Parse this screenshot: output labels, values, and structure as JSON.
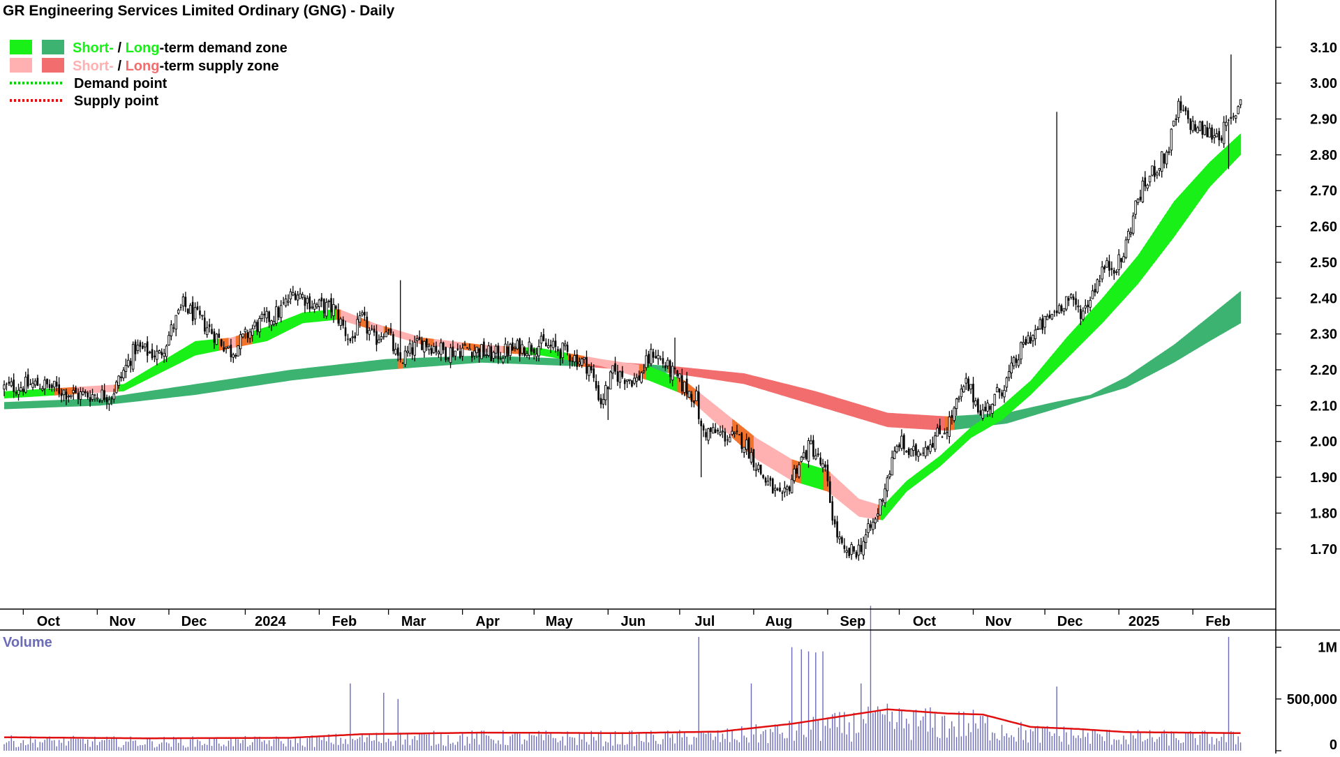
{
  "colors": {
    "short_demand": "#18f018",
    "long_demand": "#3cb371",
    "short_supply": "#ffb0b0",
    "long_supply": "#f26d6d",
    "transition": "#f2732c",
    "demand_point": "#10d010",
    "supply_point": "#e01010",
    "candle": "#000000",
    "volume_bar": "#6a6ab8",
    "volume_avg": "#e01010",
    "volume_label": "#6b6bb8"
  },
  "chart_data": {
    "type": "candlestick",
    "title": "GR Engineering Services Limited Ordinary (GNG) - Daily",
    "legend": {
      "demand_short": "Short-",
      "demand_long": "Long",
      "demand_rest": "-term demand zone",
      "supply_short": "Short-",
      "supply_long": "Long",
      "supply_rest": "-term supply zone",
      "demand_point": "Demand point",
      "supply_point": "Supply point",
      "slash": " / "
    },
    "price_axis": {
      "ylim": [
        1.61,
        3.16
      ],
      "ticks": [
        "3.10",
        "3.00",
        "2.90",
        "2.80",
        "2.70",
        "2.60",
        "2.50",
        "2.40",
        "2.30",
        "2.20",
        "2.10",
        "2.00",
        "1.90",
        "1.80",
        "1.70"
      ]
    },
    "months": [
      {
        "label": "Oct",
        "day": 8
      },
      {
        "label": "Nov",
        "day": 39
      },
      {
        "label": "Dec",
        "day": 69
      },
      {
        "label": "2024",
        "day": 101
      },
      {
        "label": "Feb",
        "day": 132
      },
      {
        "label": "Mar",
        "day": 161
      },
      {
        "label": "Apr",
        "day": 192
      },
      {
        "label": "May",
        "day": 222
      },
      {
        "label": "Jun",
        "day": 253
      },
      {
        "label": "Jul",
        "day": 283
      },
      {
        "label": "Aug",
        "day": 314
      },
      {
        "label": "Sep",
        "day": 345
      },
      {
        "label": "Oct",
        "day": 375
      },
      {
        "label": "Nov",
        "day": 406
      },
      {
        "label": "Dec",
        "day": 436
      },
      {
        "label": "2025",
        "day": 467
      },
      {
        "label": "Feb",
        "day": 498
      }
    ],
    "price_path": [
      {
        "day": 0,
        "close": 2.15
      },
      {
        "day": 15,
        "close": 2.16
      },
      {
        "day": 30,
        "close": 2.13
      },
      {
        "day": 45,
        "close": 2.13
      },
      {
        "day": 55,
        "close": 2.26
      },
      {
        "day": 65,
        "close": 2.24
      },
      {
        "day": 75,
        "close": 2.38
      },
      {
        "day": 85,
        "close": 2.32
      },
      {
        "day": 95,
        "close": 2.25
      },
      {
        "day": 105,
        "close": 2.32
      },
      {
        "day": 115,
        "close": 2.36
      },
      {
        "day": 122,
        "close": 2.42
      },
      {
        "day": 130,
        "close": 2.38
      },
      {
        "day": 138,
        "close": 2.37
      },
      {
        "day": 145,
        "close": 2.28
      },
      {
        "day": 150,
        "close": 2.34
      },
      {
        "day": 155,
        "close": 2.28
      },
      {
        "day": 160,
        "close": 2.32
      },
      {
        "day": 165,
        "close": 2.22
      },
      {
        "day": 175,
        "close": 2.28
      },
      {
        "day": 185,
        "close": 2.25
      },
      {
        "day": 195,
        "close": 2.26
      },
      {
        "day": 205,
        "close": 2.24
      },
      {
        "day": 215,
        "close": 2.26
      },
      {
        "day": 225,
        "close": 2.27
      },
      {
        "day": 235,
        "close": 2.25
      },
      {
        "day": 245,
        "close": 2.21
      },
      {
        "day": 250,
        "close": 2.11
      },
      {
        "day": 255,
        "close": 2.19
      },
      {
        "day": 265,
        "close": 2.17
      },
      {
        "day": 272,
        "close": 2.25
      },
      {
        "day": 285,
        "close": 2.15
      },
      {
        "day": 290,
        "close": 2.12
      },
      {
        "day": 292,
        "close": 2.03
      },
      {
        "day": 300,
        "close": 2.02
      },
      {
        "day": 310,
        "close": 2.0
      },
      {
        "day": 318,
        "close": 1.9
      },
      {
        "day": 326,
        "close": 1.83
      },
      {
        "day": 332,
        "close": 1.93
      },
      {
        "day": 338,
        "close": 1.99
      },
      {
        "day": 344,
        "close": 1.91
      },
      {
        "day": 348,
        "close": 1.76
      },
      {
        "day": 352,
        "close": 1.68
      },
      {
        "day": 358,
        "close": 1.7
      },
      {
        "day": 365,
        "close": 1.78
      },
      {
        "day": 370,
        "close": 1.9
      },
      {
        "day": 375,
        "close": 2.0
      },
      {
        "day": 380,
        "close": 1.96
      },
      {
        "day": 388,
        "close": 2.0
      },
      {
        "day": 395,
        "close": 2.04
      },
      {
        "day": 403,
        "close": 2.16
      },
      {
        "day": 410,
        "close": 2.08
      },
      {
        "day": 415,
        "close": 2.12
      },
      {
        "day": 420,
        "close": 2.17
      },
      {
        "day": 428,
        "close": 2.28
      },
      {
        "day": 436,
        "close": 2.33
      },
      {
        "day": 445,
        "close": 2.4
      },
      {
        "day": 452,
        "close": 2.36
      },
      {
        "day": 460,
        "close": 2.48
      },
      {
        "day": 468,
        "close": 2.5
      },
      {
        "day": 475,
        "close": 2.68
      },
      {
        "day": 482,
        "close": 2.76
      },
      {
        "day": 487,
        "close": 2.8
      },
      {
        "day": 492,
        "close": 2.93
      },
      {
        "day": 498,
        "close": 2.88
      },
      {
        "day": 505,
        "close": 2.86
      },
      {
        "day": 510,
        "close": 2.86
      },
      {
        "day": 515,
        "close": 2.9
      },
      {
        "day": 518,
        "close": 2.96
      }
    ],
    "price_spikes": [
      {
        "day": 166,
        "high": 2.45
      },
      {
        "day": 253,
        "low": 2.06
      },
      {
        "day": 281,
        "high": 2.29
      },
      {
        "day": 292,
        "low": 1.9
      },
      {
        "day": 441,
        "high": 2.92
      },
      {
        "day": 514,
        "high": 3.08
      },
      {
        "day": 513,
        "low": 2.76
      }
    ],
    "zones": {
      "short_term": [
        {
          "day": 0,
          "top": 2.14,
          "bottom": 2.12
        },
        {
          "day": 50,
          "top": 2.16,
          "bottom": 2.14
        },
        {
          "day": 65,
          "top": 2.22,
          "bottom": 2.19
        },
        {
          "day": 80,
          "top": 2.28,
          "bottom": 2.24
        },
        {
          "day": 95,
          "top": 2.29,
          "bottom": 2.26
        },
        {
          "day": 110,
          "top": 2.32,
          "bottom": 2.28
        },
        {
          "day": 125,
          "top": 2.36,
          "bottom": 2.33
        },
        {
          "day": 140,
          "top": 2.37,
          "bottom": 2.34
        },
        {
          "day": 155,
          "top": 2.33,
          "bottom": 2.31
        },
        {
          "day": 175,
          "top": 2.29,
          "bottom": 2.27
        },
        {
          "day": 200,
          "top": 2.27,
          "bottom": 2.25
        },
        {
          "day": 225,
          "top": 2.26,
          "bottom": 2.24
        },
        {
          "day": 250,
          "top": 2.23,
          "bottom": 2.21
        },
        {
          "day": 270,
          "top": 2.21,
          "bottom": 2.17
        },
        {
          "day": 285,
          "top": 2.17,
          "bottom": 2.13
        },
        {
          "day": 300,
          "top": 2.09,
          "bottom": 2.04
        },
        {
          "day": 315,
          "top": 2.01,
          "bottom": 1.95
        },
        {
          "day": 330,
          "top": 1.95,
          "bottom": 1.89
        },
        {
          "day": 345,
          "top": 1.92,
          "bottom": 1.86
        },
        {
          "day": 358,
          "top": 1.84,
          "bottom": 1.79
        },
        {
          "day": 368,
          "top": 1.82,
          "bottom": 1.78
        },
        {
          "day": 378,
          "top": 1.89,
          "bottom": 1.86
        },
        {
          "day": 392,
          "top": 1.96,
          "bottom": 1.93
        },
        {
          "day": 405,
          "top": 2.04,
          "bottom": 2.01
        },
        {
          "day": 418,
          "top": 2.1,
          "bottom": 2.06
        },
        {
          "day": 430,
          "top": 2.17,
          "bottom": 2.13
        },
        {
          "day": 445,
          "top": 2.29,
          "bottom": 2.23
        },
        {
          "day": 460,
          "top": 2.4,
          "bottom": 2.33
        },
        {
          "day": 475,
          "top": 2.52,
          "bottom": 2.44
        },
        {
          "day": 490,
          "top": 2.67,
          "bottom": 2.57
        },
        {
          "day": 505,
          "top": 2.78,
          "bottom": 2.71
        },
        {
          "day": 518,
          "top": 2.86,
          "bottom": 2.8
        }
      ],
      "long_term": [
        {
          "day": 0,
          "top": 2.11,
          "bottom": 2.09
        },
        {
          "day": 40,
          "top": 2.12,
          "bottom": 2.1
        },
        {
          "day": 80,
          "top": 2.16,
          "bottom": 2.13
        },
        {
          "day": 120,
          "top": 2.2,
          "bottom": 2.17
        },
        {
          "day": 160,
          "top": 2.23,
          "bottom": 2.2
        },
        {
          "day": 200,
          "top": 2.24,
          "bottom": 2.22
        },
        {
          "day": 240,
          "top": 2.23,
          "bottom": 2.21
        },
        {
          "day": 280,
          "top": 2.21,
          "bottom": 2.19
        },
        {
          "day": 310,
          "top": 2.19,
          "bottom": 2.16
        },
        {
          "day": 340,
          "top": 2.14,
          "bottom": 2.1
        },
        {
          "day": 370,
          "top": 2.08,
          "bottom": 2.04
        },
        {
          "day": 395,
          "top": 2.07,
          "bottom": 2.03
        },
        {
          "day": 420,
          "top": 2.08,
          "bottom": 2.05
        },
        {
          "day": 440,
          "top": 2.11,
          "bottom": 2.09
        },
        {
          "day": 455,
          "top": 2.13,
          "bottom": 2.12
        },
        {
          "day": 470,
          "top": 2.18,
          "bottom": 2.15
        },
        {
          "day": 490,
          "top": 2.27,
          "bottom": 2.22
        },
        {
          "day": 505,
          "top": 2.35,
          "bottom": 2.28
        },
        {
          "day": 518,
          "top": 2.42,
          "bottom": 2.33
        }
      ]
    },
    "volume_axis": {
      "ylim": [
        0,
        1200000
      ],
      "ticks": [
        {
          "label": "1M",
          "value": 1000000
        },
        {
          "label": "500,000",
          "value": 500000
        },
        {
          "label": "0",
          "value": 0
        }
      ],
      "label": "Volume"
    },
    "volume_spikes": [
      {
        "day": 145,
        "value": 650000
      },
      {
        "day": 159,
        "value": 560000
      },
      {
        "day": 165,
        "value": 500000
      },
      {
        "day": 291,
        "value": 1100000
      },
      {
        "day": 313,
        "value": 650000
      },
      {
        "day": 330,
        "value": 1000000
      },
      {
        "day": 334,
        "value": 980000
      },
      {
        "day": 337,
        "value": 960000
      },
      {
        "day": 340,
        "value": 950000
      },
      {
        "day": 343,
        "value": 960000
      },
      {
        "day": 359,
        "value": 650000
      },
      {
        "day": 363,
        "value": 1400000
      },
      {
        "day": 441,
        "value": 620000
      },
      {
        "day": 513,
        "value": 1100000
      }
    ],
    "volume_avg": [
      {
        "day": 0,
        "value": 130000
      },
      {
        "day": 60,
        "value": 120000
      },
      {
        "day": 120,
        "value": 125000
      },
      {
        "day": 150,
        "value": 160000
      },
      {
        "day": 200,
        "value": 175000
      },
      {
        "day": 260,
        "value": 170000
      },
      {
        "day": 300,
        "value": 185000
      },
      {
        "day": 330,
        "value": 260000
      },
      {
        "day": 350,
        "value": 330000
      },
      {
        "day": 370,
        "value": 400000
      },
      {
        "day": 395,
        "value": 360000
      },
      {
        "day": 410,
        "value": 350000
      },
      {
        "day": 430,
        "value": 230000
      },
      {
        "day": 450,
        "value": 210000
      },
      {
        "day": 470,
        "value": 180000
      },
      {
        "day": 518,
        "value": 170000
      }
    ]
  }
}
